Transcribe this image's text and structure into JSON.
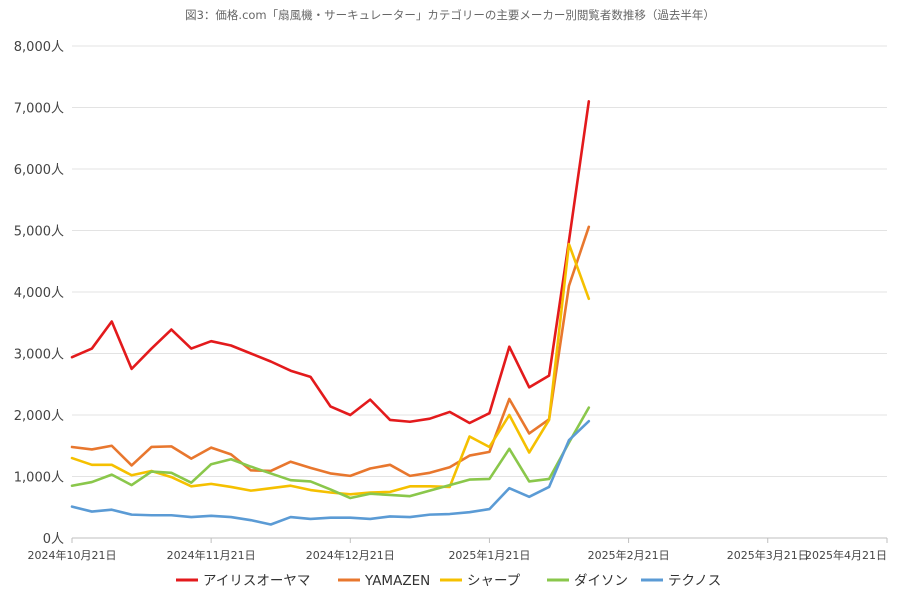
{
  "chart_data": {
    "type": "line",
    "title": "図3：価格.com「扇風機・サーキュレーター」カテゴリーの主要メーカー別閲覧者数推移（過去半年）",
    "y_ticks": [
      "0人",
      "1,000人",
      "2,000人",
      "3,000人",
      "4,000人",
      "5,000人",
      "6,000人",
      "7,000人",
      "8,000人"
    ],
    "ylim": [
      0,
      8000
    ],
    "x_ticks": [
      "2024年10月21日",
      "2024年11月21日",
      "2024年12月21日",
      "2025年1月21日",
      "2025年2月21日",
      "2025年3月21日",
      "2025年4月21日"
    ],
    "x_tick_index": [
      0,
      7,
      14,
      21,
      28,
      35,
      41
    ],
    "point_count": 42,
    "grid": true,
    "legend_position": "bottom",
    "series": [
      {
        "name": "アイリスオーヤマ",
        "color": "#e31a1c",
        "values": [
          2940,
          3080,
          3520,
          2750,
          3080,
          3390,
          3080,
          3200,
          3130,
          3000,
          2870,
          2720,
          2620,
          2140,
          2000,
          2250,
          1920,
          1890,
          1940,
          2050,
          1870,
          2030,
          3110,
          2450,
          2640,
          4830,
          7100,
          null,
          null,
          null,
          null,
          null,
          null,
          null,
          null,
          null,
          null,
          null,
          null,
          null,
          null,
          null
        ]
      },
      {
        "name": "YAMAZEN",
        "color": "#e8772e",
        "values": [
          1480,
          1440,
          1500,
          1180,
          1480,
          1490,
          1290,
          1470,
          1360,
          1100,
          1090,
          1240,
          1140,
          1050,
          1010,
          1130,
          1190,
          1010,
          1060,
          1150,
          1340,
          1400,
          2260,
          1700,
          1930,
          4100,
          5060,
          null,
          null,
          null,
          null,
          null,
          null,
          null,
          null,
          null,
          null,
          null,
          null,
          null,
          null,
          null
        ]
      },
      {
        "name": "シャープ",
        "color": "#f5c000",
        "values": [
          1300,
          1190,
          1190,
          1020,
          1090,
          990,
          840,
          880,
          830,
          770,
          810,
          850,
          780,
          740,
          710,
          740,
          750,
          840,
          840,
          830,
          1650,
          1480,
          2000,
          1390,
          1920,
          4780,
          3890,
          null,
          null,
          null,
          null,
          null,
          null,
          null,
          null,
          null,
          null,
          null,
          null,
          null,
          null,
          null
        ]
      },
      {
        "name": "ダイソン",
        "color": "#8ac74b",
        "values": [
          850,
          910,
          1030,
          860,
          1080,
          1060,
          900,
          1200,
          1280,
          1160,
          1050,
          940,
          920,
          790,
          650,
          720,
          700,
          680,
          770,
          860,
          950,
          960,
          1450,
          920,
          960,
          1550,
          2120,
          null,
          null,
          null,
          null,
          null,
          null,
          null,
          null,
          null,
          null,
          null,
          null,
          null,
          null,
          null
        ]
      },
      {
        "name": "テクノス",
        "color": "#5b9bd5",
        "values": [
          510,
          430,
          460,
          380,
          370,
          370,
          340,
          360,
          340,
          290,
          220,
          340,
          310,
          330,
          330,
          310,
          350,
          340,
          380,
          390,
          420,
          470,
          810,
          670,
          830,
          1590,
          1900,
          null,
          null,
          null,
          null,
          null,
          null,
          null,
          null,
          null,
          null,
          null,
          null,
          null,
          null,
          null
        ]
      }
    ]
  }
}
